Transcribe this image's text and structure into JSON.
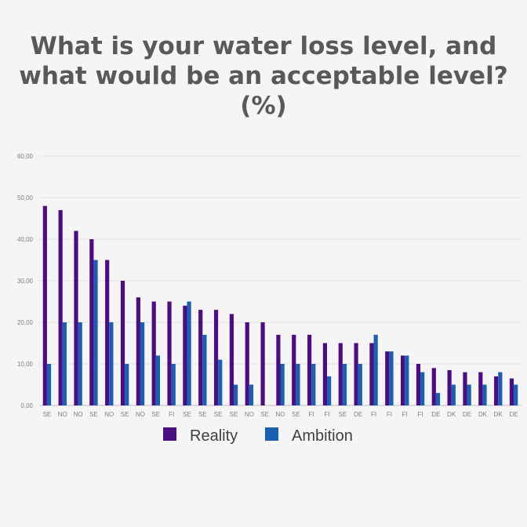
{
  "chart_data": {
    "type": "bar",
    "title_lines": [
      "What is your water loss level, and",
      "what would be an acceptable level?",
      "(%)"
    ],
    "xlabel": "",
    "ylabel": "",
    "ylim": [
      0,
      60
    ],
    "yticks": [
      "0,00",
      "10,00",
      "20,00",
      "30,00",
      "40,00",
      "50,00",
      "60,00"
    ],
    "grid": true,
    "legend_position": "bottom",
    "categories": [
      "SE",
      "NO",
      "NO",
      "SE",
      "NO",
      "SE",
      "NO",
      "SE",
      "FI",
      "SE",
      "SE",
      "SE",
      "SE",
      "NO",
      "SE",
      "NO",
      "SE",
      "FI",
      "FI",
      "SE",
      "DE",
      "FI",
      "FI",
      "FI",
      "FI",
      "DE",
      "DK",
      "DE",
      "DK",
      "DK",
      "DE"
    ],
    "series": [
      {
        "name": "Reality",
        "color": "#4b0d82",
        "values": [
          48,
          47,
          42,
          40,
          35,
          30,
          26,
          25,
          25,
          24,
          23,
          23,
          22,
          20,
          20,
          17,
          17,
          17,
          15,
          15,
          15,
          15,
          13,
          12,
          10,
          9,
          8.5,
          8,
          8,
          7,
          6.5
        ]
      },
      {
        "name": "Ambition",
        "color": "#1a5fb4",
        "values": [
          10,
          20,
          20,
          35,
          20,
          10,
          20,
          12,
          10,
          25,
          17,
          11,
          5,
          5,
          0,
          10,
          10,
          10,
          7,
          10,
          10,
          17,
          13,
          12,
          8,
          3,
          5,
          5,
          5,
          8,
          5
        ]
      }
    ]
  }
}
